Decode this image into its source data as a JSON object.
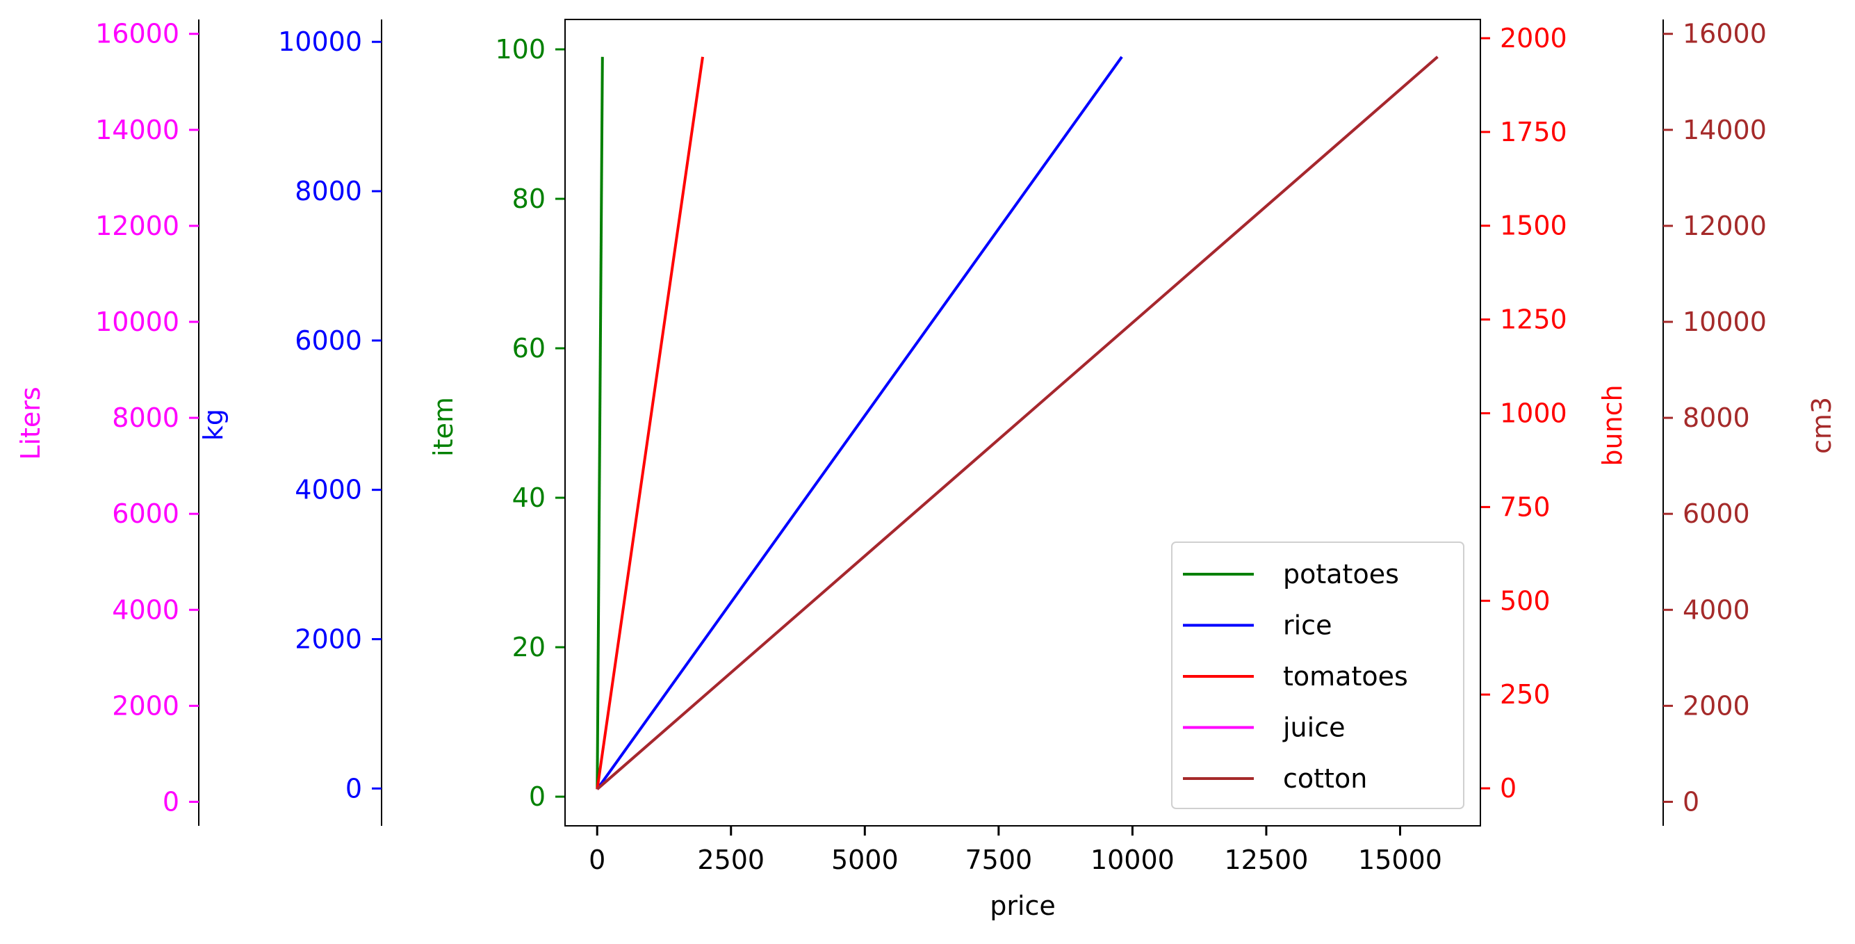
{
  "chart_data": {
    "type": "line",
    "x_axis": {
      "label": "price",
      "range": [
        -600,
        16500
      ],
      "ticks": [
        0,
        2500,
        5000,
        7500,
        10000,
        12500,
        15000
      ],
      "color": "#000000"
    },
    "y_axes": [
      {
        "id": "liters",
        "label": "Liters",
        "color": "#ff00ff",
        "range": [
          -500,
          16300
        ],
        "ticks": [
          0,
          2000,
          4000,
          6000,
          8000,
          10000,
          12000,
          14000,
          16000
        ]
      },
      {
        "id": "kg",
        "label": "kg",
        "color": "#0000ff",
        "range": [
          -500,
          10300
        ],
        "ticks": [
          0,
          2000,
          4000,
          6000,
          8000,
          10000
        ]
      },
      {
        "id": "item",
        "label": "item",
        "color": "#008000",
        "range": [
          -3.9,
          104
        ],
        "ticks": [
          0,
          20,
          40,
          60,
          80,
          100
        ]
      },
      {
        "id": "bunch",
        "label": "bunch",
        "color": "#ff0000",
        "range": [
          -100,
          2050
        ],
        "ticks": [
          0,
          250,
          500,
          750,
          1000,
          1250,
          1500,
          1750,
          2000
        ]
      },
      {
        "id": "cm3",
        "label": "cm3",
        "color": "#a52a2a",
        "range": [
          -500,
          16300
        ],
        "ticks": [
          0,
          2000,
          4000,
          6000,
          8000,
          10000,
          12000,
          14000,
          16000
        ]
      }
    ],
    "series": [
      {
        "name": "potatoes",
        "axis": "item",
        "color": "#008000",
        "x": [
          1,
          99
        ],
        "y": [
          1,
          99
        ]
      },
      {
        "name": "rice",
        "axis": "item",
        "color": "#0000ff",
        "x": [
          1,
          9801
        ],
        "y": [
          1,
          99
        ]
      },
      {
        "name": "tomatoes",
        "axis": "item",
        "color": "#ff0000",
        "x": [
          1,
          1971
        ],
        "y": [
          1,
          99
        ]
      },
      {
        "name": "juice",
        "axis": "item",
        "color": "#ff00ff",
        "x": [
          1,
          15700
        ],
        "y": [
          1,
          99
        ]
      },
      {
        "name": "cotton",
        "axis": "item",
        "color": "#a52a2a",
        "x": [
          1,
          15700
        ],
        "y": [
          1,
          99
        ]
      }
    ],
    "legend": {
      "position": "lower-right",
      "entries": [
        "potatoes",
        "rice",
        "tomatoes",
        "juice",
        "cotton"
      ]
    },
    "grid": false
  }
}
